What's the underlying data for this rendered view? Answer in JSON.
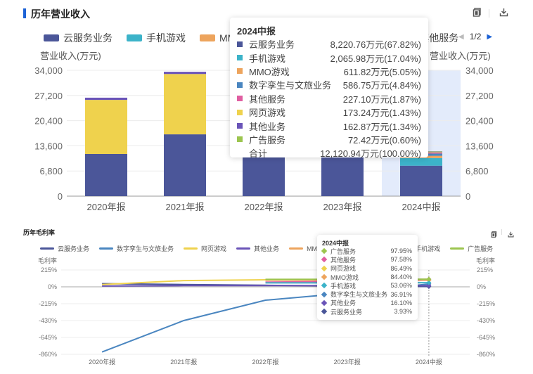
{
  "revenue_section": {
    "title": "历年营业收入",
    "copy_icon": "copy-icon",
    "download_icon": "download-icon",
    "legend_pager": {
      "label": "1/2",
      "prev_icon": "triangle-left-icon",
      "next_icon": "triangle-right-icon"
    },
    "y_axis_label_left": "营业收入(万元)",
    "y_axis_label_right": "营业收入(万元)",
    "tooltip": {
      "title": "2024中报",
      "rows": [
        {
          "name": "云服务业务",
          "value": "8,220.76万元(67.82%)",
          "color": "#4b5699"
        },
        {
          "name": "手机游戏",
          "value": "2,065.98万元(17.04%)",
          "color": "#3cb3c9"
        },
        {
          "name": "MMO游戏",
          "value": "611.82万元(5.05%)",
          "color": "#eda45d"
        },
        {
          "name": "数字孪生与文旅业务",
          "value": "586.75万元(4.84%)",
          "color": "#4a86c0"
        },
        {
          "name": "其他服务",
          "value": "227.10万元(1.87%)",
          "color": "#e05ea1"
        },
        {
          "name": "网页游戏",
          "value": "173.24万元(1.43%)",
          "color": "#efd24d"
        },
        {
          "name": "其他业务",
          "value": "162.87万元(1.34%)",
          "color": "#6a54b8"
        },
        {
          "name": "广告服务",
          "value": "72.42万元(0.60%)",
          "color": "#9cc54f"
        }
      ],
      "total_label": "合计",
      "total_value": "12,120.94万元(100.00%)"
    }
  },
  "margin_section": {
    "title": "历年毛利率",
    "copy_icon": "copy-icon",
    "download_icon": "download-icon",
    "y_axis_label_left": "毛利率",
    "y_axis_label_right": "毛利率",
    "tooltip": {
      "title": "2024中报",
      "rows": [
        {
          "name": "广告服务",
          "value": "97.95%",
          "color": "#9cc54f"
        },
        {
          "name": "其他服务",
          "value": "97.58%",
          "color": "#e05ea1"
        },
        {
          "name": "网页游戏",
          "value": "86.49%",
          "color": "#efd24d"
        },
        {
          "name": "MMO游戏",
          "value": "84.40%",
          "color": "#eda45d"
        },
        {
          "name": "手机游戏",
          "value": "53.06%",
          "color": "#3cb3c9"
        },
        {
          "name": "数字孪生与文旅业务",
          "value": "36.91%",
          "color": "#4a86c0"
        },
        {
          "name": "其他业务",
          "value": "16.10%",
          "color": "#6a54b8"
        },
        {
          "name": "云服务业务",
          "value": "3.93%",
          "color": "#4b5699"
        }
      ]
    }
  },
  "chart_data": [
    {
      "type": "bar",
      "stacked": true,
      "title": "历年营业收入",
      "xlabel": "",
      "ylabel": "营业收入(万元)",
      "ylim": [
        0,
        34000
      ],
      "yticks": [
        "0",
        "6,800",
        "13,600",
        "20,400",
        "27,200",
        "34,000"
      ],
      "grid": true,
      "legend_position": "top",
      "highlighted_category": "2024中报",
      "categories": [
        "2020年报",
        "2021年报",
        "2022年报",
        "2023年报",
        "2024中报"
      ],
      "series": [
        {
          "name": "云服务业务",
          "color": "#4b5699",
          "values": [
            11400,
            16700,
            15000,
            14000,
            8220.76
          ]
        },
        {
          "name": "手机游戏",
          "color": "#3cb3c9",
          "values": [
            0,
            0,
            2500,
            5000,
            2065.98
          ]
        },
        {
          "name": "MMO游戏",
          "color": "#eda45d",
          "values": [
            0,
            0,
            3000,
            4000,
            611.82
          ]
        },
        {
          "name": "数字孪生与文旅业务",
          "color": "#4a86c0",
          "values": [
            0,
            0,
            800,
            1500,
            586.75
          ]
        },
        {
          "name": "其他服务",
          "color": "#e05ea1",
          "values": [
            0,
            0,
            300,
            500,
            227.1
          ]
        },
        {
          "name": "网页游戏",
          "color": "#efd24d",
          "values": [
            14600,
            16300,
            1500,
            600,
            173.24
          ]
        },
        {
          "name": "其他业务",
          "color": "#6a54b8",
          "values": [
            600,
            600,
            300,
            300,
            162.87
          ]
        },
        {
          "name": "广告服务",
          "color": "#9cc54f",
          "values": [
            0,
            0,
            100,
            100,
            72.42
          ]
        }
      ],
      "legend_visible": [
        "云服务业务",
        "手机游戏",
        "MMO游戏",
        "数字孪生与文旅业务",
        "其他服务"
      ]
    },
    {
      "type": "line",
      "title": "历年毛利率",
      "xlabel": "",
      "ylabel": "毛利率",
      "ylim": [
        -860,
        215
      ],
      "yticks": [
        "215%",
        "0%",
        "-215%",
        "-430%",
        "-645%",
        "-860%"
      ],
      "grid": true,
      "legend_position": "top",
      "categories": [
        "2020年报",
        "2021年报",
        "2022年报",
        "2023年报",
        "2024中报"
      ],
      "series": [
        {
          "name": "云服务业务",
          "color": "#4b5699",
          "values": [
            40,
            30,
            20,
            10,
            3.93
          ]
        },
        {
          "name": "数字孪生与文旅业务",
          "color": "#4a86c0",
          "values": [
            -830,
            -430,
            -170,
            -80,
            36.91
          ]
        },
        {
          "name": "网页游戏",
          "color": "#efd24d",
          "values": [
            30,
            80,
            90,
            88,
            86.49
          ]
        },
        {
          "name": "其他业务",
          "color": "#6a54b8",
          "values": [
            10,
            15,
            15,
            15,
            16.1
          ]
        },
        {
          "name": "MMO游戏",
          "color": "#eda45d",
          "values": [
            null,
            null,
            85,
            85,
            84.4
          ]
        },
        {
          "name": "其他服务",
          "color": "#e05ea1",
          "values": [
            null,
            null,
            60,
            70,
            97.58
          ]
        },
        {
          "name": "手机游戏",
          "color": "#3cb3c9",
          "values": [
            null,
            null,
            50,
            50,
            53.06
          ]
        },
        {
          "name": "广告服务",
          "color": "#9cc54f",
          "values": [
            null,
            null,
            95,
            96,
            97.95
          ]
        }
      ]
    }
  ]
}
